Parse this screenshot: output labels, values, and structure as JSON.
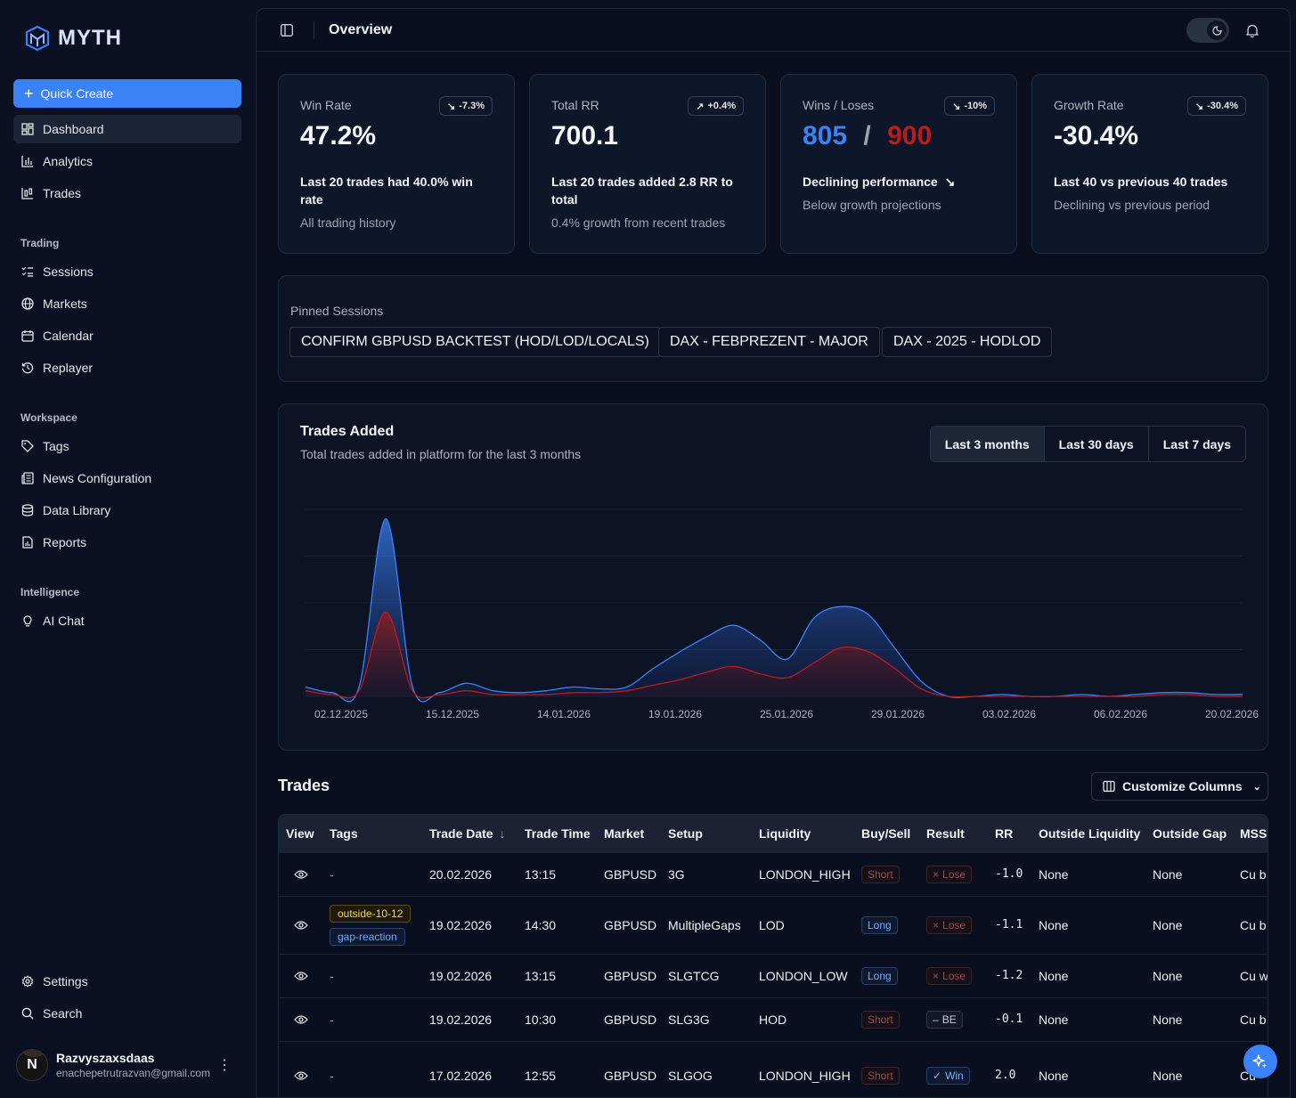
{
  "app": {
    "name": "MYTH"
  },
  "sidebar": {
    "quick_create": "Quick Create",
    "items": [
      {
        "label": "Dashboard",
        "icon": "dashboard-icon"
      },
      {
        "label": "Analytics",
        "icon": "bar-chart-icon"
      },
      {
        "label": "Trades",
        "icon": "trades-icon"
      }
    ],
    "sections": [
      {
        "title": "Trading",
        "items": [
          {
            "label": "Sessions",
            "icon": "list-check-icon"
          },
          {
            "label": "Markets",
            "icon": "globe-icon"
          },
          {
            "label": "Calendar",
            "icon": "calendar-icon"
          },
          {
            "label": "Replayer",
            "icon": "history-icon"
          }
        ]
      },
      {
        "title": "Workspace",
        "items": [
          {
            "label": "Tags",
            "icon": "tag-icon"
          },
          {
            "label": "News Configuration",
            "icon": "newspaper-icon"
          },
          {
            "label": "Data Library",
            "icon": "database-icon"
          },
          {
            "label": "Reports",
            "icon": "report-icon"
          }
        ]
      },
      {
        "title": "Intelligence",
        "items": [
          {
            "label": "AI Chat",
            "icon": "lightbulb-icon"
          }
        ]
      }
    ],
    "settings": "Settings",
    "search": "Search",
    "user": {
      "initial": "N",
      "name": "Razvyszaxsdaas",
      "email": "enachepetrutrazvan@gmail.com"
    }
  },
  "header": {
    "title": "Overview"
  },
  "cards": [
    {
      "label": "Win Rate",
      "badge": "-7.3%",
      "trend": "down",
      "value": "47.2%",
      "line1": "Last 20 trades had 40.0% win rate",
      "line2": "All trading history"
    },
    {
      "label": "Total RR",
      "badge": "+0.4%",
      "trend": "up",
      "value": "700.1",
      "line1": "Last 20 trades added 2.8 RR to total",
      "line2": "0.4% growth from recent trades"
    },
    {
      "label": "Wins / Loses",
      "badge": "-10%",
      "trend": "down",
      "wins": "805",
      "slash": "/",
      "losses": "900",
      "line1": "Declining performance",
      "line2": "Below growth projections"
    },
    {
      "label": "Growth Rate",
      "badge": "-30.4%",
      "trend": "down",
      "value": "-30.4%",
      "line1": "Last 40 vs previous 40 trades",
      "line2": "Declining vs previous period"
    }
  ],
  "pinned": {
    "label": "Pinned Sessions",
    "sessions": [
      "CONFIRM GBPUSD BACKTEST (HOD/LOD/LOCALS)",
      "DAX - FEBPREZENT - MAJOR",
      "DAX - 2025 - HODLOD"
    ]
  },
  "chart_section": {
    "title": "Trades Added",
    "subtitle": "Total trades added in platform for the last 3 months",
    "ranges": [
      "Last 3 months",
      "Last 30 days",
      "Last 7 days"
    ],
    "selected_range": "Last 3 months"
  },
  "chart_data": {
    "type": "area",
    "x_tick_labels": [
      "02.12.2025",
      "15.12.2025",
      "14.01.2026",
      "19.01.2026",
      "25.01.2026",
      "29.01.2026",
      "03.02.2026",
      "06.02.2026",
      "20.02.2026"
    ],
    "series": [
      {
        "color": "#3b82f6",
        "values": [
          0.05,
          0.02,
          0.05,
          0.95,
          0.05,
          0.02,
          0.07,
          0.03,
          0.02,
          0.03,
          0.05,
          0.04,
          0.05,
          0.15,
          0.24,
          0.32,
          0.38,
          0.3,
          0.2,
          0.42,
          0.48,
          0.44,
          0.26,
          0.08,
          0.0,
          0.0,
          0.01,
          0.0,
          0.0,
          0.01,
          0.0,
          0.01,
          0.02,
          0.02,
          0.01,
          0.01
        ]
      },
      {
        "color": "#b91c1c",
        "values": [
          0.03,
          0.01,
          0.03,
          0.45,
          0.03,
          0.01,
          0.03,
          0.01,
          0.01,
          0.01,
          0.02,
          0.02,
          0.03,
          0.06,
          0.09,
          0.13,
          0.16,
          0.12,
          0.1,
          0.18,
          0.26,
          0.24,
          0.15,
          0.04,
          0.0,
          0.0,
          0.0,
          0.0,
          0.0,
          0.0,
          0.0,
          0.0,
          0.01,
          0.01,
          0.0,
          0.0
        ]
      }
    ],
    "grid": true
  },
  "trades": {
    "title": "Trades",
    "customize": "Customize Columns",
    "columns": [
      "View",
      "Tags",
      "Trade Date",
      "Trade Time",
      "Market",
      "Setup",
      "Liquidity",
      "Buy/Sell",
      "Result",
      "RR",
      "Outside Liquidity",
      "Outside Gap",
      "MSS"
    ],
    "rows": [
      {
        "tags": [],
        "date": "20.02.2026",
        "time": "13:15",
        "market": "GBPUSD",
        "setup": "3G",
        "liquidity": "LONDON_HIGH",
        "side": "Short",
        "result": "Lose",
        "rr": "-1.0",
        "outside_liq": "None",
        "outside_gap": "None",
        "mss": "Cu b"
      },
      {
        "tags": [
          "outside-10-12",
          "gap-reaction"
        ],
        "date": "19.02.2026",
        "time": "14:30",
        "market": "GBPUSD",
        "setup": "MultipleGaps",
        "liquidity": "LOD",
        "side": "Long",
        "result": "Lose",
        "rr": "-1.1",
        "outside_liq": "None",
        "outside_gap": "None",
        "mss": "Cu b"
      },
      {
        "tags": [],
        "date": "19.02.2026",
        "time": "13:15",
        "market": "GBPUSD",
        "setup": "SLGTCG",
        "liquidity": "LONDON_LOW",
        "side": "Long",
        "result": "Lose",
        "rr": "-1.2",
        "outside_liq": "None",
        "outside_gap": "None",
        "mss": "Cu w"
      },
      {
        "tags": [],
        "date": "19.02.2026",
        "time": "10:30",
        "market": "GBPUSD",
        "setup": "SLG3G",
        "liquidity": "HOD",
        "side": "Short",
        "result": "BE",
        "rr": "-0.1",
        "outside_liq": "None",
        "outside_gap": "None",
        "mss": "Cu b"
      },
      {
        "tags": [],
        "date": "17.02.2026",
        "time": "12:55",
        "market": "GBPUSD",
        "setup": "SLGOG",
        "liquidity": "LONDON_HIGH",
        "side": "Short",
        "result": "Win",
        "rr": "2.0",
        "outside_liq": "None",
        "outside_gap": "None",
        "mss": "Cu"
      }
    ],
    "empty_tag": "-"
  },
  "colors": {
    "accent": "#3b82f6",
    "win": "#3b82f6",
    "loss": "#b91c1c"
  }
}
